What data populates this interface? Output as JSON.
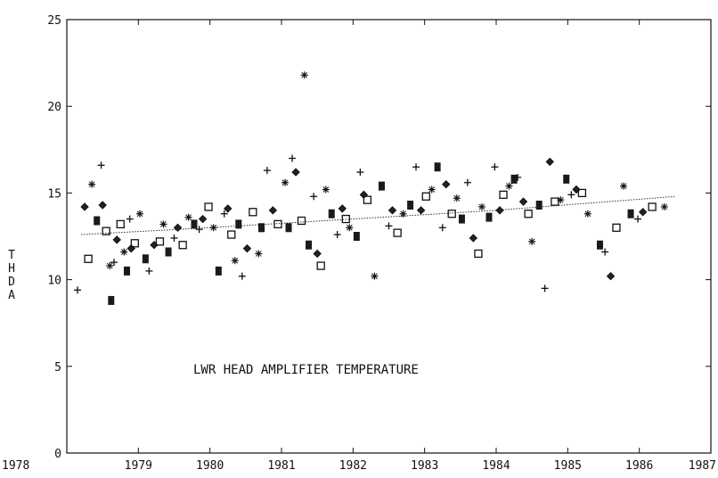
{
  "chart_data": {
    "type": "scatter",
    "title": "",
    "annotation": "LWR HEAD AMPLIFIER TEMPERATURE",
    "xlabel": "",
    "ylabel": "THDA",
    "xlim": [
      1978,
      1987
    ],
    "ylim": [
      0,
      25
    ],
    "xticks": [
      "1978",
      "1979",
      "1980",
      "1981",
      "1982",
      "1983",
      "1984",
      "1985",
      "1986",
      "1987"
    ],
    "yticks": [
      "0",
      "5",
      "10",
      "15",
      "20",
      "25"
    ],
    "grid": false,
    "trend": {
      "x": [
        1978.2,
        1980.0,
        1982.0,
        1984.0,
        1986.5
      ],
      "y": [
        12.6,
        13.0,
        13.5,
        14.0,
        14.8
      ]
    },
    "x": [
      1978.15,
      1978.25,
      1978.3,
      1978.35,
      1978.42,
      1978.48,
      1978.5,
      1978.55,
      1978.6,
      1978.62,
      1978.66,
      1978.7,
      1978.75,
      1978.8,
      1978.84,
      1978.88,
      1978.9,
      1978.95,
      1979.02,
      1979.1,
      1979.15,
      1979.22,
      1979.3,
      1979.35,
      1979.42,
      1979.5,
      1979.55,
      1979.62,
      1979.7,
      1979.78,
      1979.85,
      1979.9,
      1979.98,
      1980.05,
      1980.12,
      1980.2,
      1980.25,
      1980.3,
      1980.35,
      1980.4,
      1980.45,
      1980.52,
      1980.6,
      1980.68,
      1980.72,
      1980.8,
      1980.88,
      1980.95,
      1981.05,
      1981.1,
      1981.15,
      1981.2,
      1981.28,
      1981.32,
      1981.38,
      1981.45,
      1981.5,
      1981.55,
      1981.62,
      1981.7,
      1981.78,
      1981.85,
      1981.9,
      1981.95,
      1982.05,
      1982.1,
      1982.15,
      1982.2,
      1982.3,
      1982.4,
      1982.5,
      1982.55,
      1982.62,
      1982.7,
      1982.8,
      1982.88,
      1982.95,
      1983.02,
      1983.1,
      1983.18,
      1983.25,
      1983.3,
      1983.38,
      1983.45,
      1983.52,
      1983.6,
      1983.68,
      1983.75,
      1983.8,
      1983.9,
      1983.98,
      1984.05,
      1984.1,
      1984.18,
      1984.25,
      1984.3,
      1984.38,
      1984.45,
      1984.5,
      1984.6,
      1984.68,
      1984.75,
      1984.82,
      1984.9,
      1984.98,
      1985.05,
      1985.12,
      1985.2,
      1985.28,
      1985.45,
      1985.52,
      1985.6,
      1985.68,
      1985.78,
      1985.88,
      1985.98,
      1986.05,
      1986.18,
      1986.35
    ],
    "y": [
      9.4,
      14.2,
      11.2,
      15.5,
      13.4,
      16.6,
      14.3,
      12.8,
      10.8,
      8.8,
      11.0,
      12.3,
      13.2,
      11.6,
      10.5,
      13.5,
      11.8,
      12.1,
      13.8,
      11.2,
      10.5,
      12.0,
      12.2,
      13.2,
      11.6,
      12.4,
      13.0,
      12.0,
      13.6,
      13.2,
      12.9,
      13.5,
      14.2,
      13.0,
      10.5,
      13.8,
      14.1,
      12.6,
      11.1,
      13.2,
      10.2,
      11.8,
      13.9,
      11.5,
      13.0,
      16.3,
      14.0,
      13.2,
      15.6,
      13.0,
      17.0,
      16.2,
      13.4,
      21.8,
      12.0,
      14.8,
      11.5,
      10.8,
      15.2,
      13.8,
      12.6,
      14.1,
      13.5,
      13.0,
      12.5,
      16.2,
      14.9,
      14.6,
      10.2,
      15.4,
      13.1,
      14.0,
      12.7,
      13.8,
      14.3,
      16.5,
      14.0,
      14.8,
      15.2,
      16.5,
      13.0,
      15.5,
      13.8,
      14.7,
      13.5,
      15.6,
      12.4,
      11.5,
      14.2,
      13.6,
      16.5,
      14.0,
      14.9,
      15.4,
      15.8,
      15.9,
      14.5,
      13.8,
      12.2,
      14.3,
      9.5,
      16.8,
      14.5,
      14.6,
      15.8,
      14.9,
      15.2,
      15.0,
      13.8,
      12.0,
      11.6,
      10.2,
      13.0,
      15.4,
      13.8,
      13.5,
      13.9,
      14.2,
      14.2
    ],
    "marker_types": [
      "plus",
      "diamond",
      "square",
      "asterisk",
      "filled"
    ]
  }
}
